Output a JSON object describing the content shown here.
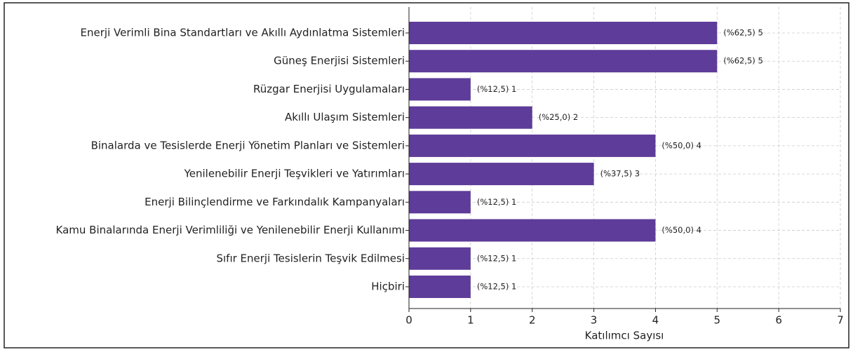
{
  "chart_data": {
    "type": "barh",
    "xlabel": "Katılımcı Sayısı",
    "categories": [
      "Enerji Verimli Bina Standartları ve Akıllı Aydınlatma Sistemleri",
      "Güneş Enerjisi Sistemleri",
      "Rüzgar Enerjisi Uygulamaları",
      "Akıllı Ulaşım Sistemleri",
      "Binalarda ve Tesislerde Enerji Yönetim Planları ve Sistemleri",
      "Yenilenebilir Enerji Teşvikleri ve Yatırımları",
      "Enerji Bilinçlendirme ve Farkındalık Kampanyaları",
      "Kamu Binalarında Enerji Verimliliği ve Yenilenebilir Enerji Kullanımı",
      "Sıfır Enerji Tesislerin Teşvik Edilmesi",
      "Hiçbiri"
    ],
    "values": [
      5,
      5,
      1,
      2,
      4,
      3,
      1,
      4,
      1,
      1
    ],
    "value_labels": [
      "(%62,5) 5",
      "(%62,5) 5",
      "(%12,5) 1",
      "(%25,0) 2",
      "(%50,0) 4",
      "(%37,5) 3",
      "(%12,5) 1",
      "(%50,0) 4",
      "(%12,5) 1",
      "(%12,5) 1"
    ],
    "color": "#5e3c99",
    "xlim": [
      0,
      7
    ],
    "xticks": [
      0,
      1,
      2,
      3,
      4,
      5,
      6,
      7
    ],
    "grid": true
  }
}
